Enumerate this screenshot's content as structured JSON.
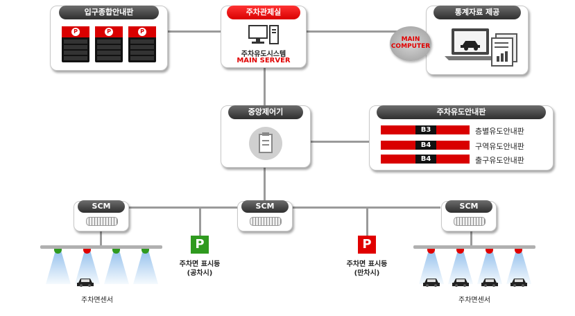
{
  "entrance_board": {
    "title": "입구종합안내판"
  },
  "control_room": {
    "title": "주차관제실",
    "system_name": "주차유도시스템",
    "server_label": "MAIN SERVER"
  },
  "statistics": {
    "title": "통계자료 제공",
    "computer_label": "MAIN COMPUTER"
  },
  "central_controller": {
    "title": "중앙제어기"
  },
  "guide_boards": {
    "title": "주차유도안내판",
    "rows": [
      {
        "center": "B3",
        "label": "층별유도안내판"
      },
      {
        "center": "B4",
        "label": "구역유도안내판"
      },
      {
        "center": "B4",
        "label": "출구유도안내판"
      }
    ]
  },
  "scm_units": [
    {
      "label": "SCM"
    },
    {
      "label": "SCM"
    },
    {
      "label": "SCM"
    }
  ],
  "space_indicators": [
    {
      "line1": "주차면 표시등",
      "line2": "(공차시)",
      "color": "#2f9a1f"
    },
    {
      "line1": "주차면 표시등",
      "line2": "(만차시)",
      "color": "#e00000"
    }
  ],
  "sensor_groups": [
    {
      "label": "주차면센서"
    },
    {
      "label": "주차면센서"
    }
  ],
  "colors": {
    "accent": "#e00000",
    "vacant": "#2f9a1f"
  }
}
